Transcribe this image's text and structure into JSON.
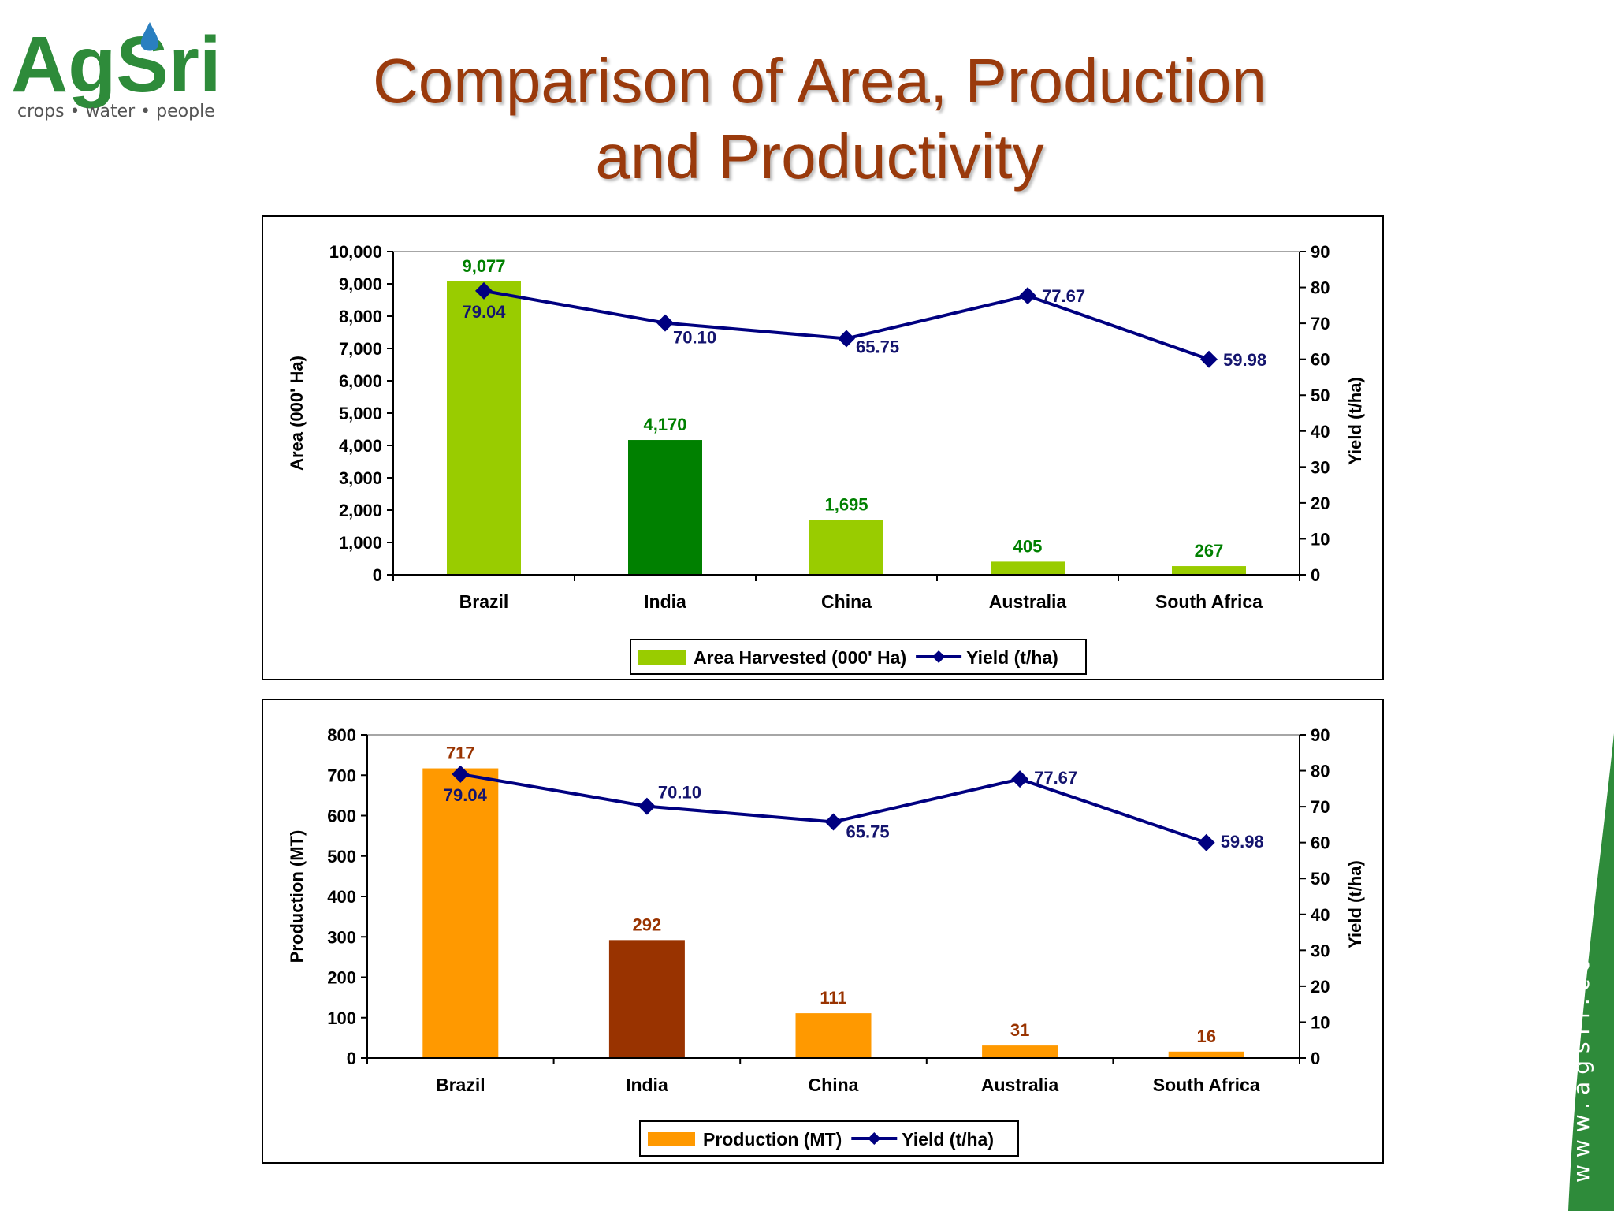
{
  "logo": {
    "brand": "AgSri",
    "tagline": "crops • water • people"
  },
  "title": {
    "line1": "Comparison of Area, Production",
    "line2": "and Productivity"
  },
  "side_url": "www.agsri.com",
  "colors": {
    "title": "#9a3a0c",
    "area_light": "#99cc00",
    "area_dark": "#008000",
    "production_light": "#ff9900",
    "production_dark": "#993300",
    "yield_line": "#000080",
    "stripe": "#2e8b3a"
  },
  "chart_data": [
    {
      "type": "bar",
      "categories": [
        "Brazil",
        "India",
        "China",
        "Australia",
        "South Africa"
      ],
      "series": [
        {
          "name": "Area Harvested (000' Ha)",
          "type": "bar",
          "axis": "left",
          "values": [
            9077,
            4170,
            1695,
            405,
            267
          ],
          "value_labels": [
            "9,077",
            "4,170",
            "1,695",
            "405",
            "267"
          ]
        },
        {
          "name": "Yield (t/ha)",
          "type": "line",
          "axis": "right",
          "values": [
            79.04,
            70.1,
            65.75,
            77.67,
            59.98
          ],
          "value_labels": [
            "79.04",
            "70.10",
            "65.75",
            "77.67",
            "59.98"
          ]
        }
      ],
      "ylabel": "Area (000' Ha)",
      "y2label": "Yield (t/ha)",
      "ylim": [
        0,
        10000
      ],
      "y2lim": [
        0,
        90
      ],
      "yticks": [
        "0",
        "1,000",
        "2,000",
        "3,000",
        "4,000",
        "5,000",
        "6,000",
        "7,000",
        "8,000",
        "9,000",
        "10,000"
      ],
      "y2ticks": [
        "0",
        "10",
        "20",
        "30",
        "40",
        "50",
        "60",
        "70",
        "80",
        "90"
      ],
      "legend_position": "bottom-center",
      "grid": false
    },
    {
      "type": "bar",
      "categories": [
        "Brazil",
        "India",
        "China",
        "Australia",
        "South Africa"
      ],
      "series": [
        {
          "name": "Production (MT)",
          "type": "bar",
          "axis": "left",
          "values": [
            717,
            292,
            111,
            31,
            16
          ],
          "value_labels": [
            "717",
            "292",
            "111",
            "31",
            "16"
          ]
        },
        {
          "name": "Yield (t/ha)",
          "type": "line",
          "axis": "right",
          "values": [
            79.04,
            70.1,
            65.75,
            77.67,
            59.98
          ],
          "value_labels": [
            "79.04",
            "70.10",
            "65.75",
            "77.67",
            "59.98"
          ]
        }
      ],
      "ylabel": "Production (MT)",
      "y2label": "Yield (t/ha)",
      "ylim": [
        0,
        800
      ],
      "y2lim": [
        0,
        90
      ],
      "yticks": [
        "0",
        "100",
        "200",
        "300",
        "400",
        "500",
        "600",
        "700",
        "800"
      ],
      "y2ticks": [
        "0",
        "10",
        "20",
        "30",
        "40",
        "50",
        "60",
        "70",
        "80",
        "90"
      ],
      "legend_position": "bottom-center",
      "grid": false
    }
  ]
}
